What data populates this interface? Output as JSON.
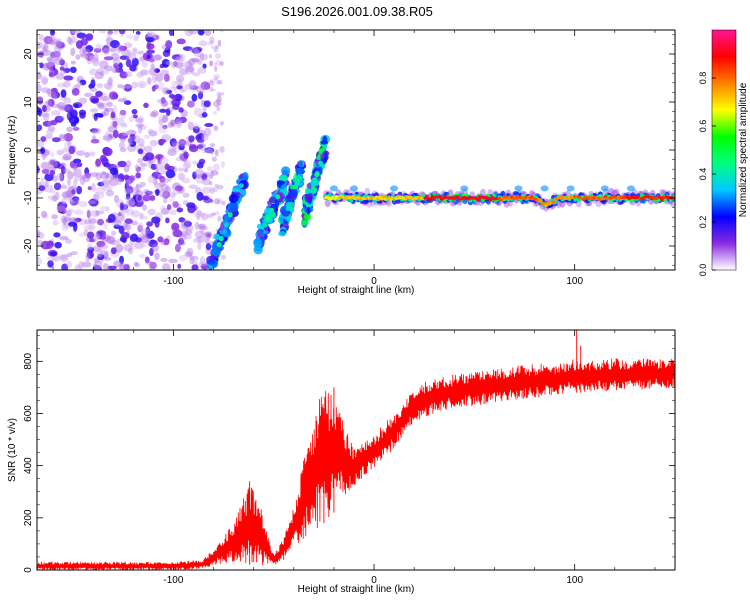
{
  "page": {
    "title": "S196.2026.001.09.38.R05"
  },
  "chart_data": [
    {
      "type": "heatmap",
      "title": "S196.2026.001.09.38.R05",
      "xlabel": "Height of straight line (km)",
      "ylabel": "Frequency (Hz)",
      "xlim": [
        -168,
        150
      ],
      "ylim": [
        -25,
        25
      ],
      "x_ticks": [
        -100,
        0,
        100
      ],
      "y_ticks": [
        -20,
        -10,
        0,
        10,
        20
      ],
      "colorbar": {
        "label": "Normalized spectral amplitude",
        "range": [
          0,
          1
        ],
        "ticks": [
          "0.0",
          "0.2",
          "0.4",
          "0.6",
          "0.8"
        ],
        "tick_values": [
          0,
          0.2,
          0.4,
          0.6,
          0.8
        ],
        "colors": [
          "#ffffff",
          "#8a2be2",
          "#0000ff",
          "#00c8ff",
          "#00ff80",
          "#00ff00",
          "#ffff00",
          "#ff8000",
          "#ff0000",
          "#ff1493"
        ]
      },
      "noise_region": {
        "x_range": [
          -168,
          -82
        ],
        "freq_range": [
          -25,
          25
        ],
        "amplitude": 0.15
      },
      "scatter_region": {
        "x_range": [
          -82,
          -75
        ],
        "freq_range": [
          -25,
          25
        ],
        "amplitude": 0.08
      },
      "rising_streaks": [
        {
          "x_range": [
            -82,
            -64
          ],
          "freq_range": [
            -25,
            -5
          ],
          "amplitude": 0.25
        },
        {
          "x_range": [
            -58,
            -44
          ],
          "freq_range": [
            -19,
            -6
          ],
          "amplitude": 0.35
        },
        {
          "x_range": [
            -46,
            -36
          ],
          "freq_range": [
            -16,
            -4
          ],
          "amplitude": 0.4
        },
        {
          "x_range": [
            -35,
            -24
          ],
          "freq_range": [
            -14,
            1
          ],
          "amplitude": 0.45
        }
      ],
      "tone": {
        "frequency": -10,
        "x_range": [
          -24,
          150
        ],
        "segments": [
          {
            "x_start": -24,
            "x_end": -18,
            "amplitude": 0.7
          },
          {
            "x_start": -18,
            "x_end": 25,
            "amplitude": 0.75
          },
          {
            "x_start": 25,
            "x_end": 62,
            "amplitude": 0.95
          },
          {
            "x_start": 62,
            "x_end": 82,
            "amplitude": 0.85
          },
          {
            "x_start": 82,
            "x_end": 100,
            "amplitude": 0.8
          },
          {
            "x_start": 100,
            "x_end": 125,
            "amplitude": 0.85
          },
          {
            "x_start": 125,
            "x_end": 150,
            "amplitude": 0.9
          }
        ],
        "dip": {
          "x_range": [
            80,
            92
          ],
          "frequency": -11.5
        }
      }
    },
    {
      "type": "line",
      "xlabel": "Height of straight line (km)",
      "ylabel": "SNR (10 * v/v)",
      "xlim": [
        -168,
        150
      ],
      "ylim": [
        0,
        920
      ],
      "x_ticks": [
        -100,
        0,
        100
      ],
      "y_ticks": [
        0,
        200,
        400,
        600,
        800
      ],
      "series": [
        {
          "name": "SNR",
          "color": "#ff0000",
          "envelope_x": [
            -168,
            -100,
            -85,
            -80,
            -70,
            -62,
            -55,
            -50,
            -45,
            -40,
            -35,
            -30,
            -25,
            -20,
            -15,
            -10,
            -5,
            0,
            5,
            10,
            15,
            20,
            25,
            30,
            40,
            50,
            60,
            70,
            80,
            90,
            100,
            110,
            120,
            130,
            150
          ],
          "envelope_low": [
            0,
            0,
            5,
            20,
            30,
            20,
            10,
            15,
            40,
            80,
            120,
            150,
            180,
            220,
            280,
            320,
            360,
            390,
            420,
            470,
            520,
            560,
            580,
            600,
            620,
            630,
            640,
            650,
            660,
            670,
            680,
            680,
            690,
            690,
            700
          ],
          "envelope_high": [
            30,
            30,
            40,
            80,
            180,
            340,
            210,
            60,
            120,
            250,
            440,
            600,
            700,
            690,
            560,
            470,
            490,
            520,
            560,
            600,
            640,
            700,
            720,
            730,
            750,
            760,
            770,
            780,
            790,
            790,
            810,
            810,
            810,
            810,
            810
          ],
          "spikes": [
            {
              "x": -62,
              "y": 340
            },
            {
              "x": -20,
              "y": 700
            },
            {
              "x": -25,
              "y": 620
            },
            {
              "x": 101,
              "y": 920
            },
            {
              "x": 103,
              "y": 860
            }
          ]
        }
      ]
    }
  ]
}
